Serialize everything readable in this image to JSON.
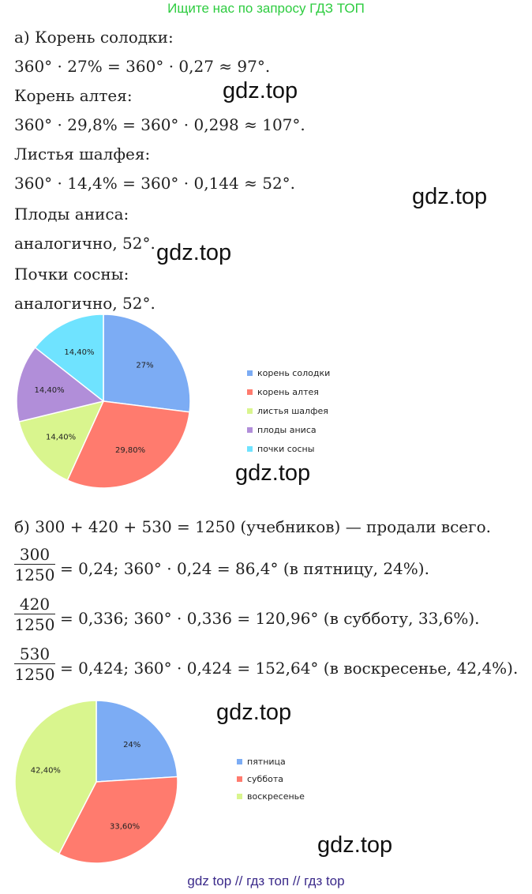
{
  "banner": "Ищите нас по запросу ГДЗ ТОП",
  "part_a": {
    "lines": [
      "а) Корень солодки:",
      "360° · 27% = 360° · 0,27 ≈ 97°.",
      "Корень алтея:",
      "360° · 29,8% = 360° · 0,298 ≈ 107°.",
      "Листья шалфея:",
      "360° · 14,4% = 360° · 0,144 ≈ 52°.",
      "Плоды аниса:",
      "аналогично, 52°.",
      "Почки сосны:",
      "аналогично, 52°."
    ]
  },
  "part_b": {
    "intro": "б) 300 + 420 + 530 = 1250 (учебников) — продали всего.",
    "fractions": [
      {
        "num": "300",
        "den": "1250",
        "text": "= 0,24;    360° · 0,24 = 86,4° (в пятницу, 24%)."
      },
      {
        "num": "420",
        "den": "1250",
        "text": "= 0,336;    360° · 0,336 = 120,96° (в субботу, 33,6%)."
      },
      {
        "num": "530",
        "den": "1250",
        "text": "= 0,424;    360° · 0,424 = 152,64° (в воскресенье, 42,4%)."
      }
    ]
  },
  "watermarks": [
    "gdz.top",
    "gdz.top",
    "gdz.top",
    "gdz.top",
    "gdz.top",
    "gdz.top"
  ],
  "footer": "gdz top  //  гдз топ  //  гдз top",
  "chart_data": [
    {
      "type": "pie",
      "categories": [
        "корень солодки",
        "корень алтея",
        "листья шалфея",
        "плоды аниса",
        "почки сосны"
      ],
      "values": [
        27,
        29.8,
        14.4,
        14.4,
        14.4
      ],
      "labels": [
        "27%",
        "29,80%",
        "14,40%",
        "14,40%",
        "14,40%"
      ],
      "colors": [
        "#7cacf4",
        "#ff7b6e",
        "#d9f58e",
        "#b18ed9",
        "#6fe3ff"
      ],
      "legend": "right"
    },
    {
      "type": "pie",
      "categories": [
        "пятница",
        "суббота",
        "воскресенье"
      ],
      "values": [
        24,
        33.6,
        42.4
      ],
      "labels": [
        "24%",
        "33,60%",
        "42,40%"
      ],
      "colors": [
        "#7cacf4",
        "#ff7b6e",
        "#d9f58e"
      ],
      "legend": "right"
    }
  ]
}
